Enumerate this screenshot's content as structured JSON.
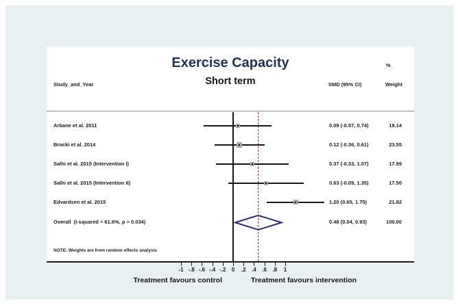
{
  "window": {
    "panel_bg": "#e8f0f1"
  },
  "header": {
    "title": "Exercise Capacity",
    "subtitle": "Short term",
    "col_study": "Study_and_Year",
    "col_pct": "%",
    "col_smd": "SMD (95% CI)",
    "col_weight": "Weight"
  },
  "footer": {
    "note": "NOTE: Weights are from random effects analysis",
    "favours_left": "Treatment favours control",
    "favours_right": "Treatment favours intervention"
  },
  "chart_data": {
    "type": "forest",
    "title": "Exercise Capacity",
    "subtitle": "Short term",
    "effect_label": "SMD (95% CI)",
    "model": "random effects",
    "x_axis": {
      "min": -1,
      "max": 1,
      "ticks": [
        -1,
        -0.8,
        -0.6,
        -0.4,
        -0.2,
        0,
        0.2,
        0.4,
        0.6,
        0.8,
        1
      ],
      "tick_labels": [
        "-1",
        "-.8",
        "-.6",
        "-.4",
        "-.2",
        "0",
        ".2",
        ".4",
        ".6",
        ".8",
        "1"
      ],
      "null_line": 0,
      "overall_dashed_line": 0.48
    },
    "studies": [
      {
        "label": "Arbane et al. 2011",
        "est": 0.09,
        "lo": -0.57,
        "hi": 0.74,
        "weight": 19.14,
        "smd_text": "0.09 (-0.57, 0.74)",
        "weight_text": "19.14"
      },
      {
        "label": "Brocki et al. 2014",
        "est": 0.12,
        "lo": -0.36,
        "hi": 0.61,
        "weight": 23.55,
        "smd_text": "0.12 (-0.36, 0.61)",
        "weight_text": "23.55"
      },
      {
        "label": "Salhi et al. 2015 (Intervention I)",
        "est": 0.37,
        "lo": -0.33,
        "hi": 1.07,
        "weight": 17.99,
        "smd_text": "0.37 (-0.33, 1.07)",
        "weight_text": "17.99"
      },
      {
        "label": "Salhi et al. 2015 (Intervention II)",
        "est": 0.63,
        "lo": -0.09,
        "hi": 1.35,
        "weight": 17.5,
        "smd_text": "0.63 (-0.09, 1.35)",
        "weight_text": "17.50"
      },
      {
        "label": "Edvardsen et al. 2015",
        "est": 1.2,
        "lo": 0.65,
        "hi": 1.75,
        "weight": 21.82,
        "smd_text": "1.20 (0.65, 1.75)",
        "weight_text": "21.82"
      }
    ],
    "overall": {
      "label": "Overall  (I-squared = 61.6%, p = 0.034)",
      "est": 0.48,
      "lo": 0.04,
      "hi": 0.93,
      "weight": 100.0,
      "smd_text": "0.48 (0.04, 0.93)",
      "weight_text": "100.00"
    },
    "heterogeneity": {
      "i_squared": "61.6%",
      "p": "0.034"
    },
    "note": "NOTE: Weights are from random effects analysis",
    "favours": {
      "left": "Treatment favours control",
      "right": "Treatment favours intervention"
    }
  },
  "colors": {
    "panel_bg": "#e8f0f1",
    "title": "#1f3159",
    "diamond": "#2b2b6e",
    "overall_line": "#9e3a32",
    "line": "#161616",
    "marker": "#a8a8a8"
  }
}
